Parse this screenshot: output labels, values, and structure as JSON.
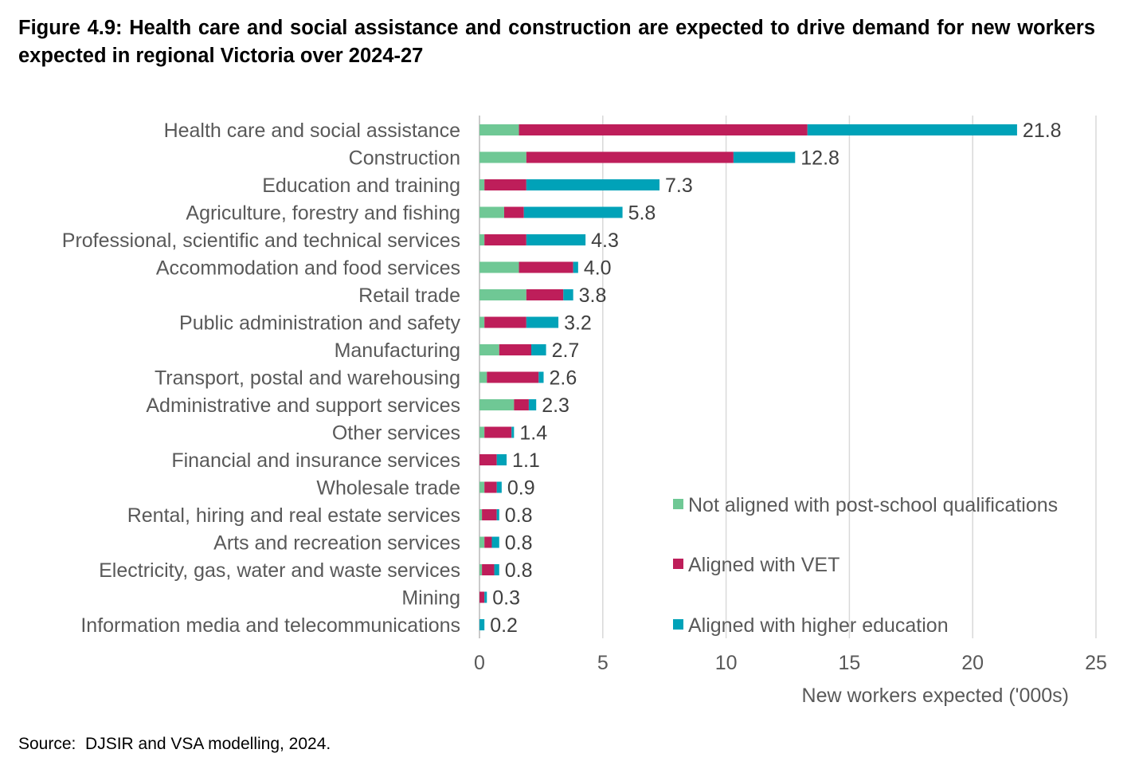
{
  "figure": {
    "title": "Figure 4.9: Health care and social assistance and construction are expected to drive demand for new workers expected in regional Victoria over 2024-27",
    "source": "Source:  DJSIR and VSA modelling, 2024."
  },
  "colors": {
    "not_aligned": "#6fc895",
    "vet": "#be1e5a",
    "higher_ed": "#00a2b8",
    "grid": "#d9d9d9",
    "label_text": "#595959"
  },
  "chart_data": {
    "type": "bar",
    "orientation": "horizontal",
    "stacked": true,
    "categories": [
      "Health care and social assistance",
      "Construction",
      "Education and training",
      "Agriculture, forestry and fishing",
      "Professional, scientific and technical services",
      "Accommodation and food services",
      "Retail trade",
      "Public administration and safety",
      "Manufacturing",
      "Transport, postal and warehousing",
      "Administrative and support services",
      "Other services",
      "Financial and insurance services",
      "Wholesale trade",
      "Rental, hiring and real estate services",
      "Arts and recreation services",
      "Electricity, gas, water and waste services",
      "Mining",
      "Information media and telecommunications"
    ],
    "series": [
      {
        "name": "Not aligned with post-school qualifications",
        "values": [
          1.6,
          1.9,
          0.2,
          1.0,
          0.2,
          1.6,
          1.9,
          0.2,
          0.8,
          0.3,
          1.4,
          0.2,
          0.0,
          0.2,
          0.1,
          0.2,
          0.1,
          0.0,
          0.0
        ]
      },
      {
        "name": "Aligned with VET",
        "values": [
          11.7,
          8.4,
          1.7,
          0.8,
          1.7,
          2.2,
          1.5,
          1.7,
          1.3,
          2.1,
          0.6,
          1.1,
          0.7,
          0.5,
          0.6,
          0.3,
          0.5,
          0.2,
          0.0
        ]
      },
      {
        "name": "Aligned with higher education",
        "values": [
          8.5,
          2.5,
          5.4,
          4.0,
          2.4,
          0.2,
          0.4,
          1.3,
          0.6,
          0.2,
          0.3,
          0.1,
          0.4,
          0.2,
          0.1,
          0.3,
          0.2,
          0.1,
          0.2
        ]
      }
    ],
    "totals": [
      "21.8",
      "12.8",
      "7.3",
      "5.8",
      "4.3",
      "4.0",
      "3.8",
      "3.2",
      "2.7",
      "2.6",
      "2.3",
      "1.4",
      "1.1",
      "0.9",
      "0.8",
      "0.8",
      "0.8",
      "0.3",
      "0.2"
    ],
    "xlim": [
      0,
      25
    ],
    "xticks": [
      "0",
      "5",
      "10",
      "15",
      "20",
      "25"
    ],
    "xlabel": "New workers expected ('000s)",
    "ylabel": "",
    "grid": "vertical",
    "legend_position": "bottom-right, inside plot"
  }
}
